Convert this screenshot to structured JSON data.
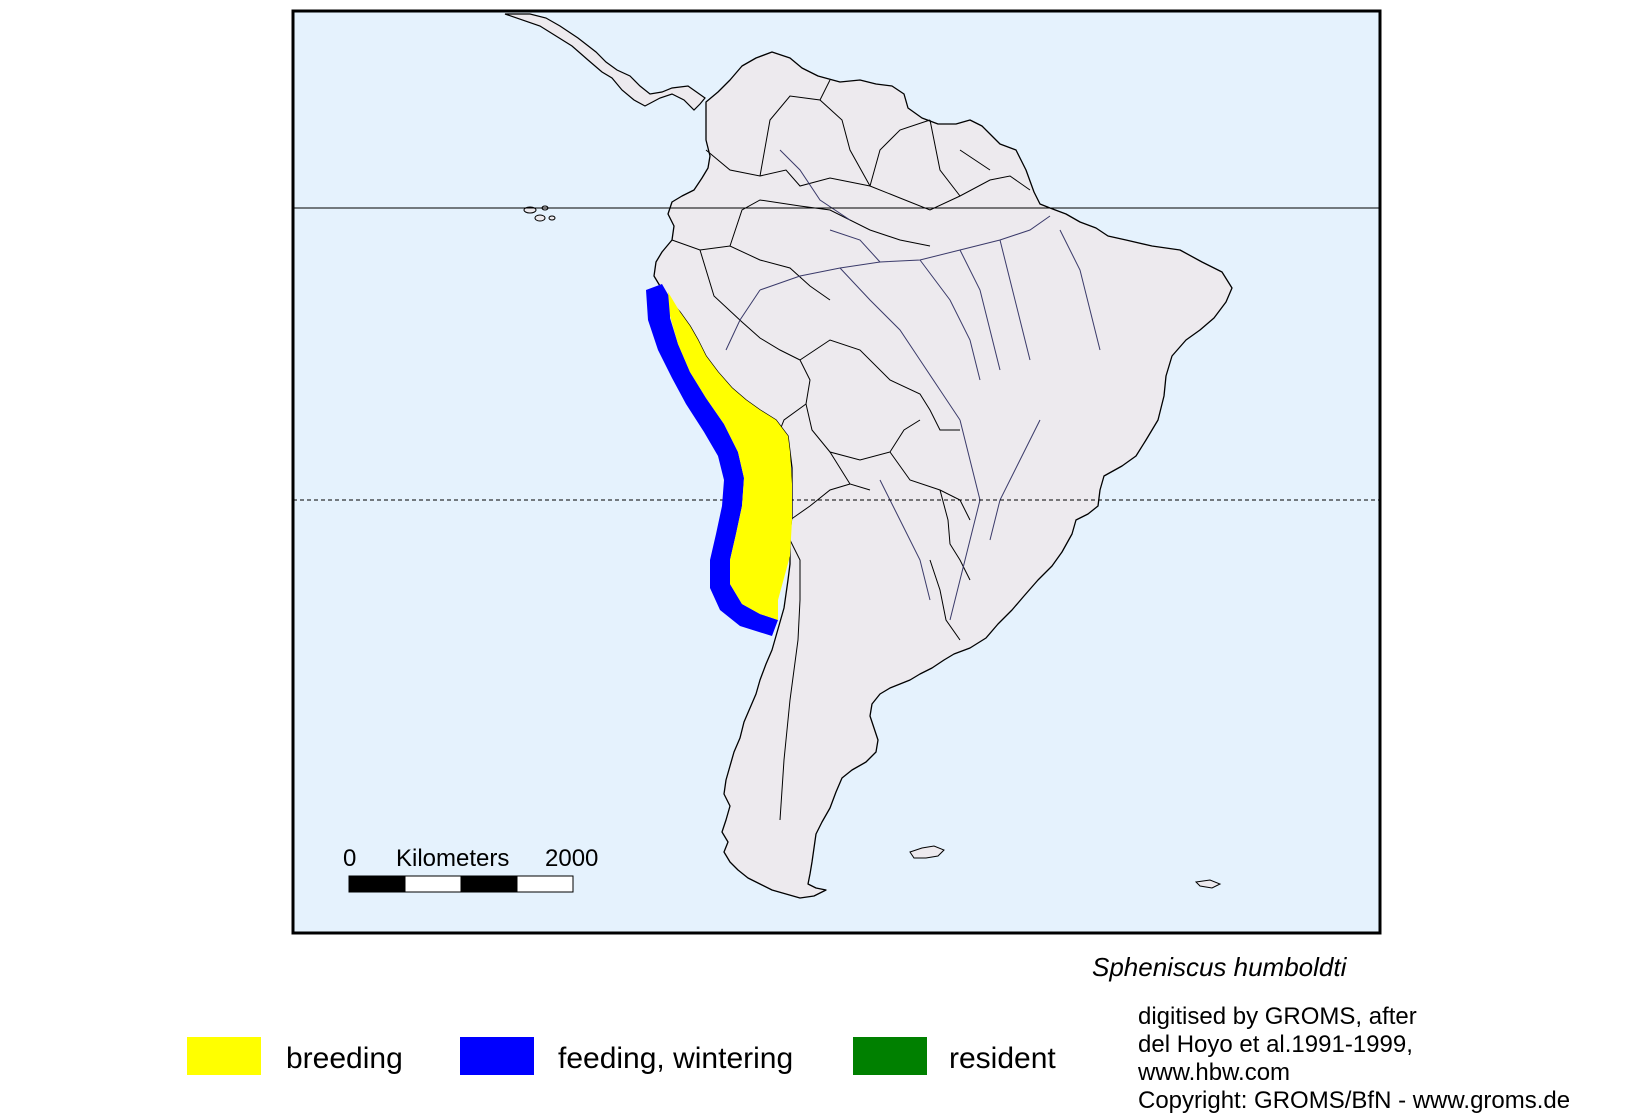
{
  "map": {
    "ocean_color": "#e5f2fd",
    "land_color": "#edeaee",
    "frame_color": "#000000",
    "parallels": [
      {
        "name": "Equator",
        "style": "solid"
      },
      {
        "name": "Tropic of Capricorn",
        "style": "dashed"
      }
    ],
    "scale_bar": {
      "min_label": "0",
      "unit_label": "Kilometers",
      "max_label": "2000"
    }
  },
  "range": {
    "breeding_color": "#ffff00",
    "feeding_color": "#0000ff",
    "resident_color": "#008000"
  },
  "species": "Spheniscus humboldti",
  "legend": [
    {
      "label": "breeding",
      "color": "#ffff00"
    },
    {
      "label": "feeding, wintering",
      "color": "#0000ff"
    },
    {
      "label": "resident",
      "color": "#008000"
    }
  ],
  "credits": [
    "digitised by GROMS, after",
    "del Hoyo et al.1991-1999,",
    "www.hbw.com",
    "Copyright: GROMS/BfN - www.groms.de"
  ]
}
